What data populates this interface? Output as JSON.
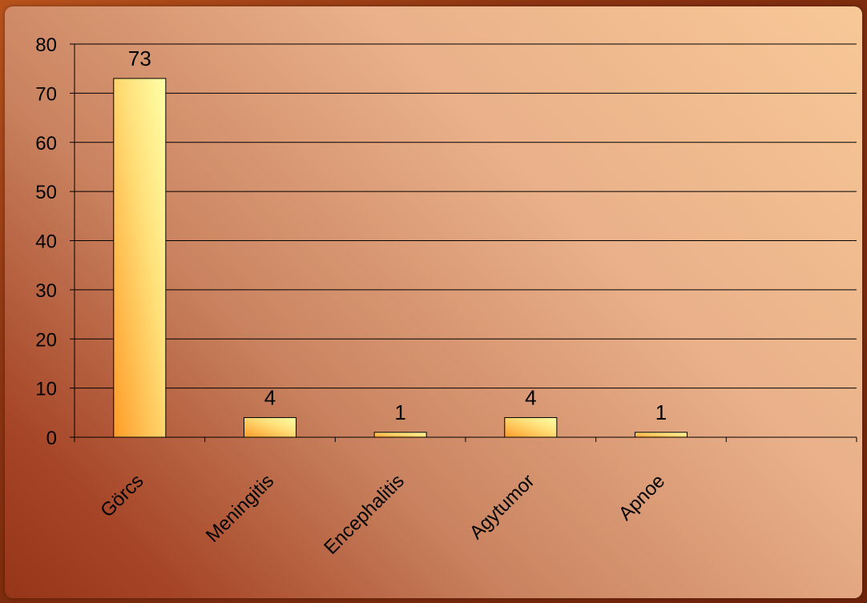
{
  "chart_data": {
    "type": "bar",
    "categories": [
      "Görcs",
      "Meningitis",
      "Encephalitis",
      "Agytumor",
      "Apnoe",
      ""
    ],
    "values": [
      73,
      4,
      1,
      4,
      1,
      null
    ],
    "data_labels": [
      "73",
      "4",
      "1",
      "4",
      "1",
      ""
    ],
    "title": "",
    "xlabel": "",
    "ylabel": "",
    "ylim": [
      0,
      80
    ],
    "yticks": [
      0,
      10,
      20,
      30,
      40,
      50,
      60,
      70,
      80
    ],
    "grid": true,
    "legend": "none"
  },
  "colors": {
    "bar_light": "#ffff9e",
    "bar_dark": "#ff9c28",
    "gridline": "#000000"
  }
}
